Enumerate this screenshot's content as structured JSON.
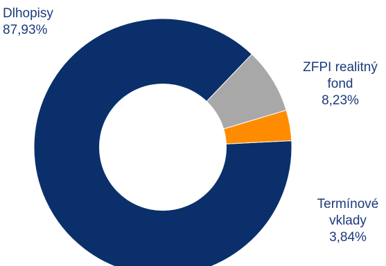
{
  "chart_data": {
    "type": "pie",
    "title": "",
    "legend": "none",
    "slices": [
      {
        "label_lines": [
          "Dlhopisy"
        ],
        "value": 87.93,
        "value_label": "87,93%",
        "color": "#0a2f6b"
      },
      {
        "label_lines": [
          "ZFPI realitný",
          "fond"
        ],
        "value": 8.23,
        "value_label": "8,23%",
        "color": "#a8a8a8"
      },
      {
        "label_lines": [
          "Termínové",
          "vklady"
        ],
        "value": 3.84,
        "value_label": "3,84%",
        "color": "#ff8c00"
      }
    ]
  }
}
